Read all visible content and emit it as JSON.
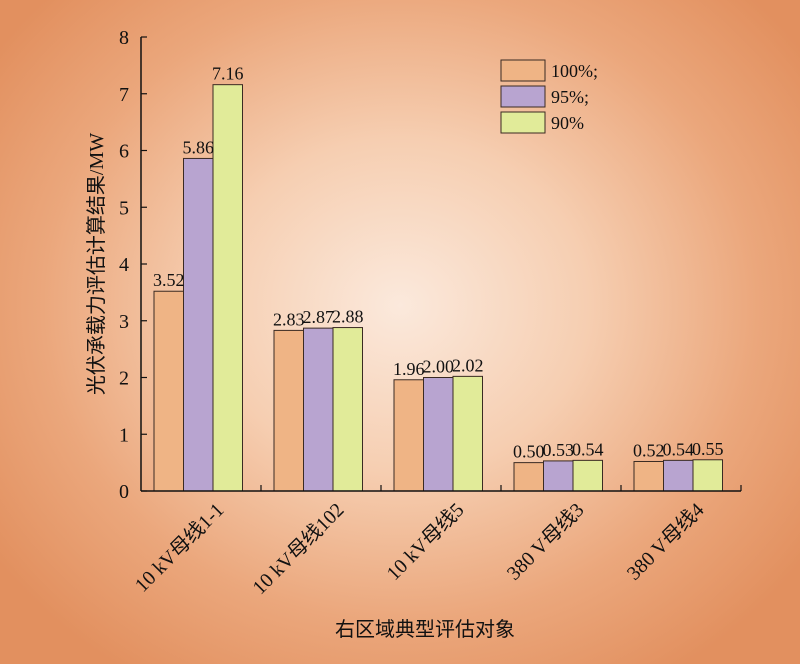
{
  "chart_data": {
    "type": "bar",
    "title": "",
    "xlabel": "右区域典型评估对象",
    "ylabel": "光伏承载力评估计算结果/MW",
    "ylim": [
      0,
      8
    ],
    "yticks": [
      "0",
      "1",
      "2",
      "3",
      "4",
      "5",
      "6",
      "7",
      "8"
    ],
    "categories": [
      "10 kV母线1-1",
      "10 kV母线102",
      "10 kV母线5",
      "380 V母线3",
      "380 V母线4"
    ],
    "series": [
      {
        "name": "100%;",
        "color": "#efb485",
        "values": [
          3.52,
          2.83,
          1.96,
          0.5,
          0.52
        ],
        "labels": [
          "3.52",
          "2.83",
          "1.96",
          "0.50",
          "0.52"
        ]
      },
      {
        "name": "95%;",
        "color": "#b8a4d0",
        "values": [
          5.86,
          2.87,
          2.0,
          0.53,
          0.54
        ],
        "labels": [
          "5.86",
          "2.87",
          "2.00",
          "0.53",
          "0.54"
        ]
      },
      {
        "name": "90%",
        "color": "#e1eb99",
        "values": [
          7.16,
          2.88,
          2.02,
          0.54,
          0.55
        ],
        "labels": [
          "7.16",
          "2.88",
          "2.02",
          "0.54",
          "0.55"
        ]
      }
    ],
    "legend_position": "top-right",
    "grid": false
  }
}
